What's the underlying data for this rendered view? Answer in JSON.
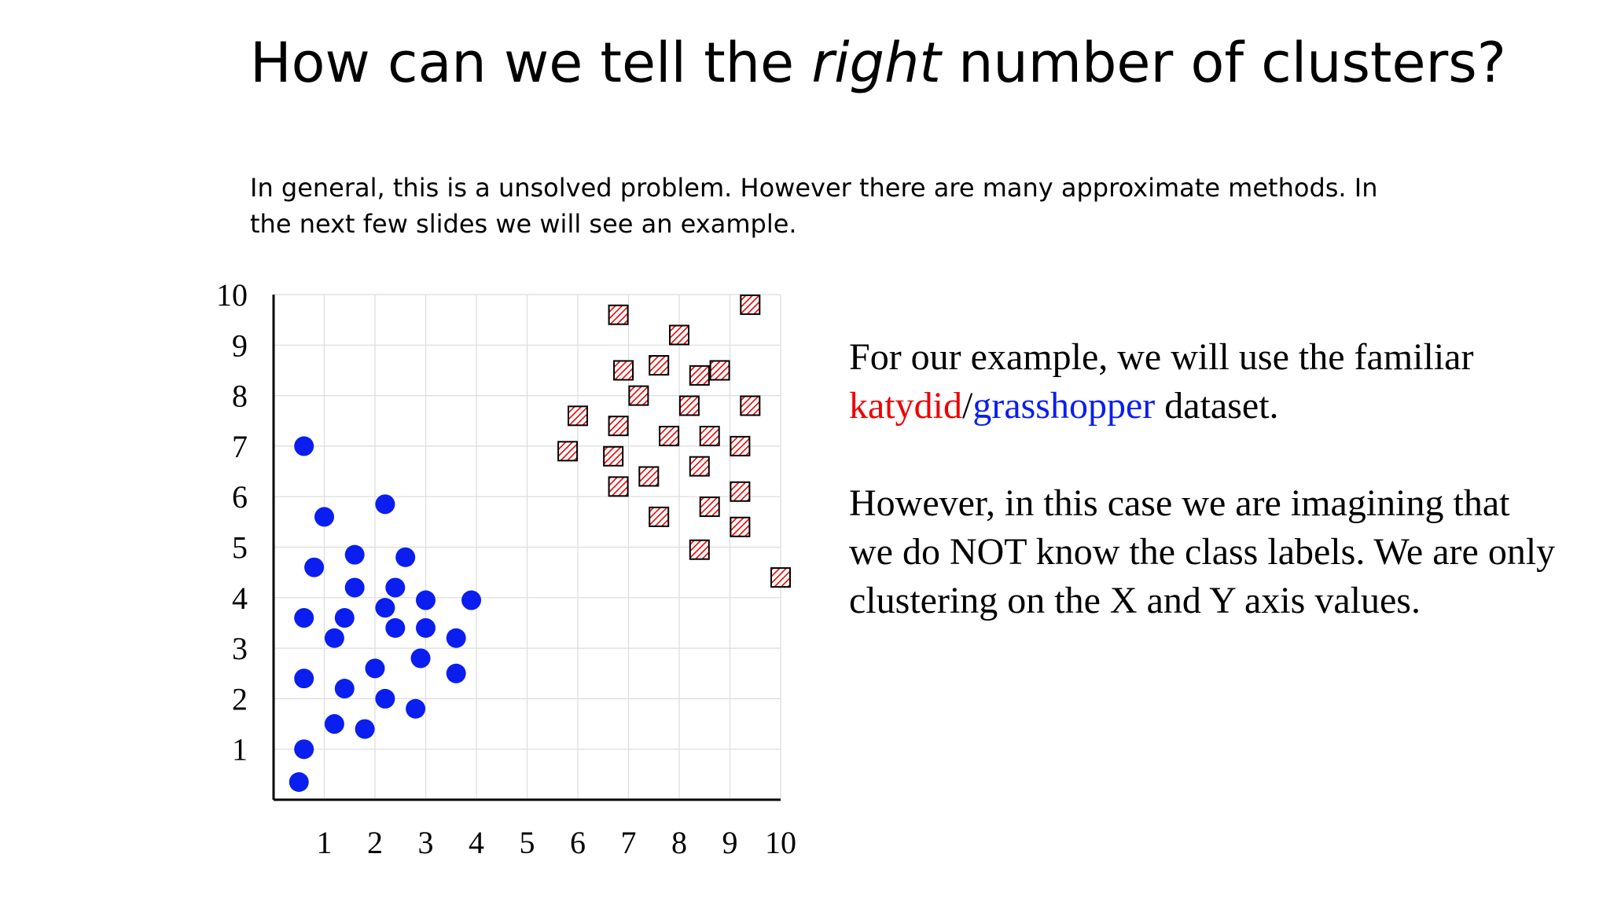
{
  "slide": {
    "title_before": "How can we tell the ",
    "title_emph": "right",
    "title_after": " number of clusters?",
    "intro": "In general, this is a unsolved problem. However there are many approximate methods. In the next few slides we will see an example.",
    "desc": {
      "line1_before": "For our example, we will use the familiar ",
      "katydid": "katydid",
      "slash": "/",
      "grasshopper": "grasshopper",
      "line1_after": " dataset.",
      "para2": "However, in this case we are imagining that we do NOT know the class labels. We are only clustering on the X and Y axis values."
    },
    "colors": {
      "katydid": "#ee0000",
      "grasshopper": "#0a1ef0"
    }
  },
  "chart_data": {
    "type": "scatter",
    "title": "",
    "xlabel": "",
    "ylabel": "",
    "xlim": [
      0,
      10
    ],
    "ylim": [
      0,
      10
    ],
    "grid": true,
    "x_ticks": [
      "1",
      "2",
      "3",
      "4",
      "5",
      "6",
      "7",
      "8",
      "9",
      "10"
    ],
    "y_ticks": [
      "1",
      "2",
      "3",
      "4",
      "5",
      "6",
      "7",
      "8",
      "9",
      "10"
    ],
    "series": [
      {
        "marker": "circle",
        "color": "#0a1ef0",
        "points": [
          [
            0.6,
            7.0
          ],
          [
            1.0,
            5.6
          ],
          [
            2.2,
            5.85
          ],
          [
            0.8,
            4.6
          ],
          [
            1.6,
            4.85
          ],
          [
            2.6,
            4.8
          ],
          [
            1.6,
            4.2
          ],
          [
            2.4,
            4.2
          ],
          [
            3.0,
            3.95
          ],
          [
            3.9,
            3.95
          ],
          [
            2.2,
            3.8
          ],
          [
            0.6,
            3.6
          ],
          [
            1.4,
            3.6
          ],
          [
            2.4,
            3.4
          ],
          [
            3.0,
            3.4
          ],
          [
            1.2,
            3.2
          ],
          [
            3.6,
            3.2
          ],
          [
            2.9,
            2.8
          ],
          [
            2.0,
            2.6
          ],
          [
            3.6,
            2.5
          ],
          [
            0.6,
            2.4
          ],
          [
            1.4,
            2.2
          ],
          [
            2.2,
            2.0
          ],
          [
            2.8,
            1.8
          ],
          [
            1.2,
            1.5
          ],
          [
            1.8,
            1.4
          ],
          [
            0.6,
            1.0
          ],
          [
            0.5,
            0.35
          ]
        ]
      },
      {
        "marker": "hatched-square",
        "color": "#ee0000",
        "points": [
          [
            6.8,
            9.6
          ],
          [
            9.4,
            9.8
          ],
          [
            8.0,
            9.2
          ],
          [
            6.9,
            8.5
          ],
          [
            7.6,
            8.6
          ],
          [
            8.4,
            8.4
          ],
          [
            8.8,
            8.5
          ],
          [
            7.2,
            8.0
          ],
          [
            8.2,
            7.8
          ],
          [
            9.4,
            7.8
          ],
          [
            6.0,
            7.6
          ],
          [
            6.8,
            7.4
          ],
          [
            7.8,
            7.2
          ],
          [
            8.6,
            7.2
          ],
          [
            9.2,
            7.0
          ],
          [
            5.8,
            6.9
          ],
          [
            6.7,
            6.8
          ],
          [
            8.4,
            6.6
          ],
          [
            6.8,
            6.2
          ],
          [
            7.4,
            6.4
          ],
          [
            9.2,
            6.1
          ],
          [
            8.6,
            5.8
          ],
          [
            7.6,
            5.6
          ],
          [
            9.2,
            5.4
          ],
          [
            8.4,
            4.95
          ],
          [
            10.0,
            4.4
          ]
        ]
      }
    ]
  }
}
